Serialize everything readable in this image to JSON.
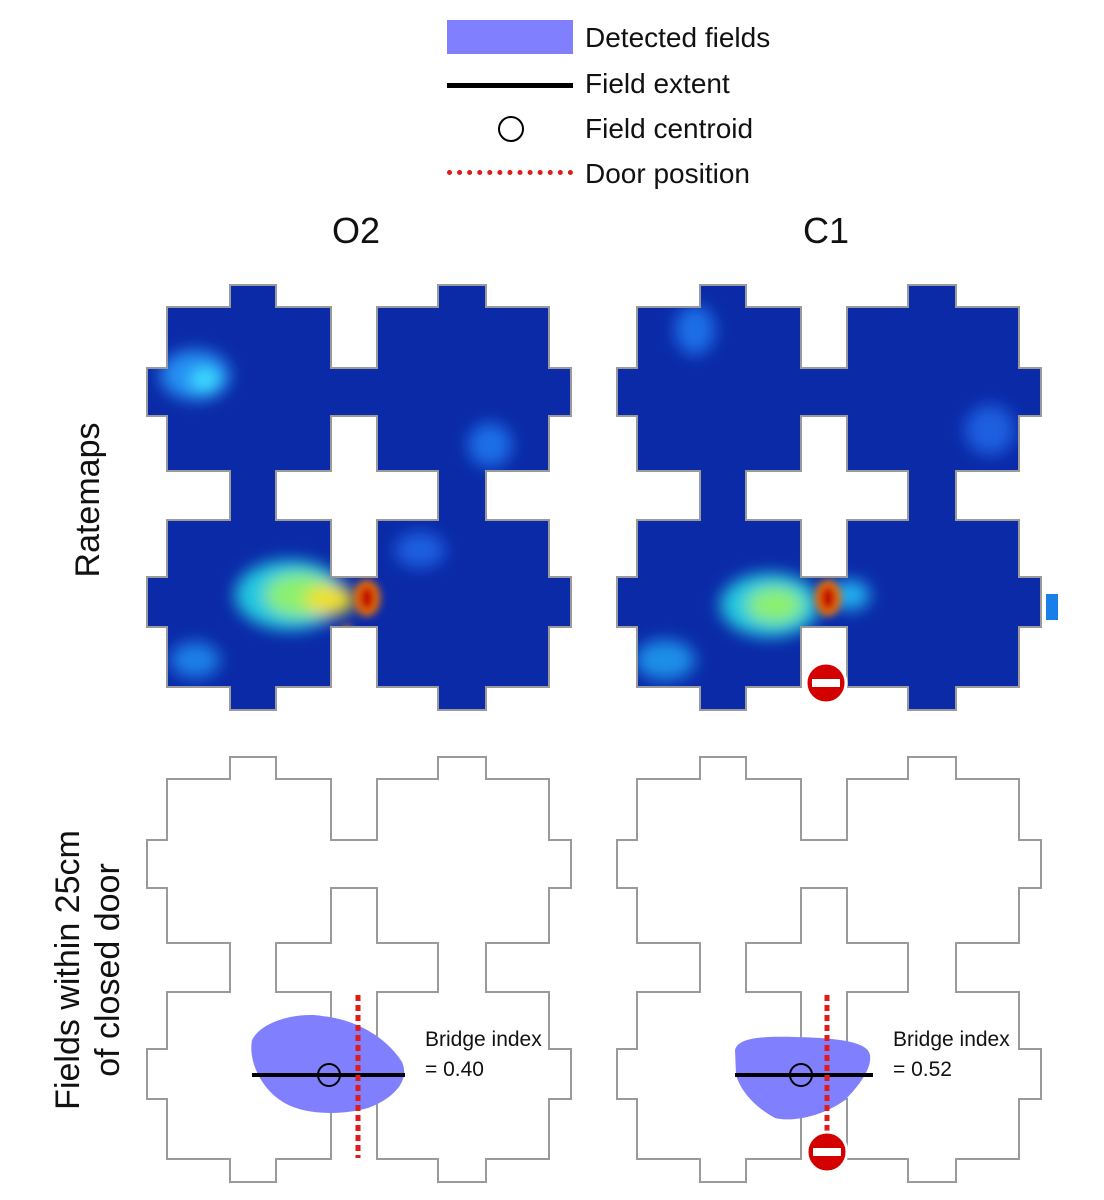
{
  "legend": {
    "detected_fields": "Detected fields",
    "field_extent": "Field extent",
    "field_centroid": "Field centroid",
    "door_position": "Door position",
    "colors": {
      "detected_fields": "#8080ff",
      "field_extent": "#000000",
      "door_position": "#e11a1a"
    }
  },
  "columns": [
    {
      "title": "O2",
      "door_closed": false,
      "bridge_index_label": "Bridge index",
      "bridge_index_value": "= 0.40"
    },
    {
      "title": "C1",
      "door_closed": true,
      "bridge_index_label": "Bridge index",
      "bridge_index_value": "= 0.52"
    }
  ],
  "rows": {
    "ratemaps": "Ratemaps",
    "fields_line1": "Fields within 25cm",
    "fields_line2": "of closed door"
  },
  "colors": {
    "maze_outline": "#9a9a9a",
    "ratemap_low": "#0b2aa8",
    "ratemap_high": "#c00000",
    "no_entry_sign": "#d40000"
  },
  "icons": [
    "no-entry-icon",
    "centroid-circle-icon"
  ]
}
